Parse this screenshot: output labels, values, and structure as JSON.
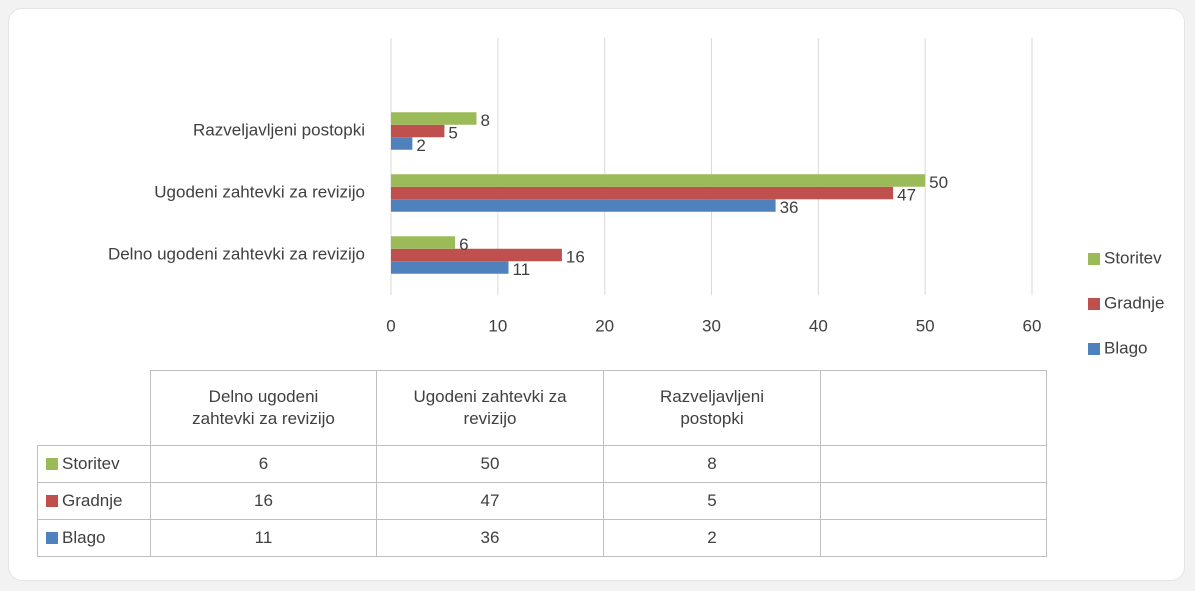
{
  "chart_data": {
    "type": "bar",
    "orientation": "horizontal",
    "categories": [
      "Delno ugodeni zahtevki za revizijo",
      "Ugodeni zahtevki za revizijo",
      "Razveljavljeni postopki"
    ],
    "series": [
      {
        "name": "Blago",
        "color": "#4f81bd",
        "values": [
          11,
          36,
          2
        ]
      },
      {
        "name": "Gradnje",
        "color": "#c0504d",
        "values": [
          16,
          47,
          5
        ]
      },
      {
        "name": "Storitev",
        "color": "#9bbb59",
        "values": [
          6,
          50,
          8
        ]
      }
    ],
    "xlim": [
      0,
      60
    ],
    "xticks": [
      0,
      10,
      20,
      30,
      40,
      50,
      60
    ],
    "grid": true,
    "legend": "right",
    "data_table": true
  }
}
